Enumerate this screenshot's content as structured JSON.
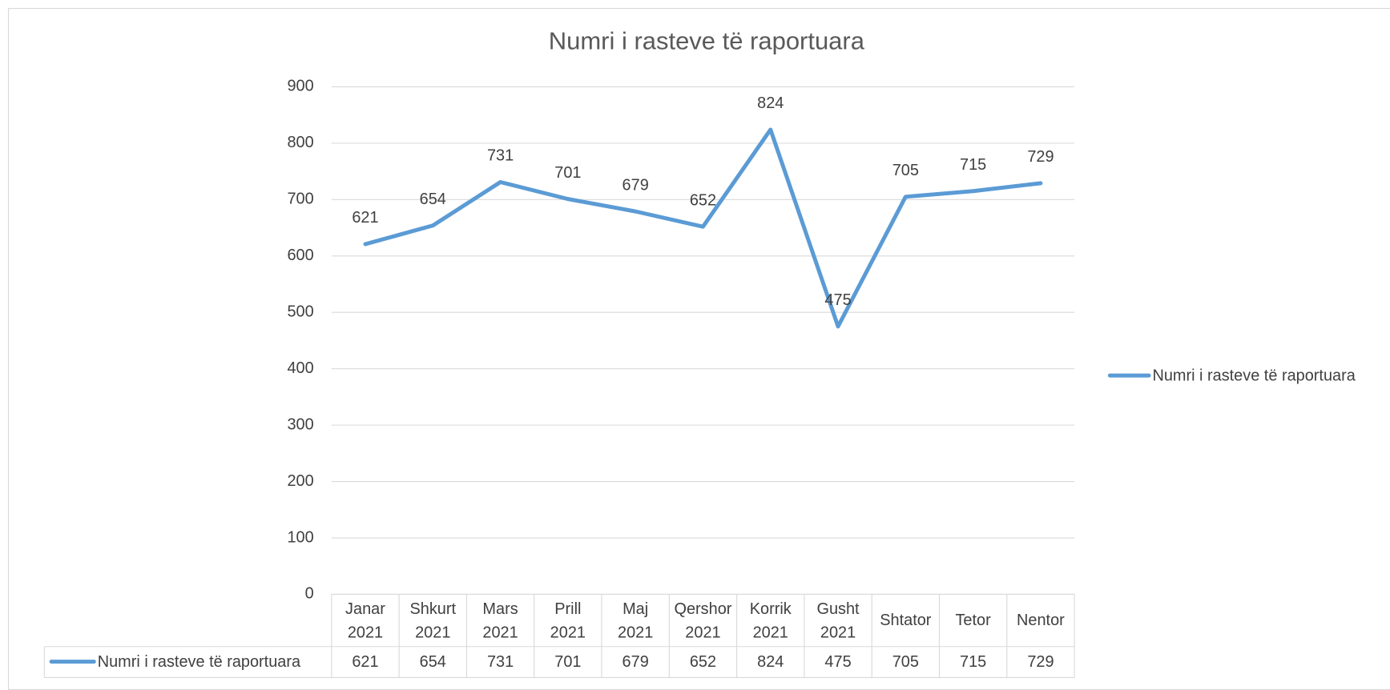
{
  "chart_data": {
    "type": "line",
    "title": "Numri i rasteve të raportuara",
    "categories": [
      "Janar 2021",
      "Shkurt 2021",
      "Mars 2021",
      "Prill 2021",
      "Maj 2021",
      "Qershor 2021",
      "Korrik 2021",
      "Gusht 2021",
      "Shtator",
      "Tetor",
      "Nentor"
    ],
    "series": [
      {
        "name": "Numri i rasteve të raportuara",
        "color": "#5b9bd5",
        "values": [
          621,
          654,
          731,
          701,
          679,
          652,
          824,
          475,
          705,
          715,
          729
        ]
      }
    ],
    "ylim": [
      0,
      900
    ],
    "yticks": [
      0,
      100,
      200,
      300,
      400,
      500,
      600,
      700,
      800,
      900
    ],
    "grid": true,
    "legend": "right",
    "data_labels": true,
    "data_table": true
  }
}
